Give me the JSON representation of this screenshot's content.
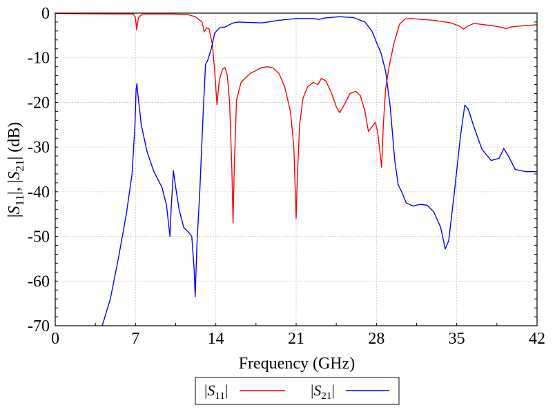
{
  "chart_data": {
    "type": "line",
    "xlabel": "Frequency (GHz)",
    "ylabel_parts": [
      "|",
      "S",
      "11",
      "|, |",
      "S",
      "21",
      "| (dB)"
    ],
    "xlim": [
      0,
      42
    ],
    "ylim": [
      -70,
      0
    ],
    "xticks": [
      0,
      7,
      14,
      21,
      28,
      35,
      42
    ],
    "xtick_labels": [
      "0",
      "7",
      "14",
      "21",
      "28",
      "35",
      "42"
    ],
    "yticks": [
      0,
      -10,
      -20,
      -30,
      -40,
      -50,
      -60,
      -70
    ],
    "ytick_labels": [
      "0",
      "-10",
      "-20",
      "-30",
      "-40",
      "-50",
      "-60",
      "-70"
    ],
    "grid": true,
    "legend_position": "bottom-center",
    "series": [
      {
        "legend": {
          "pre": "|",
          "sym": "S",
          "sub": "11",
          "post": "|"
        },
        "color": "#ff0000",
        "points": [
          [
            0,
            -0.1
          ],
          [
            6.8,
            -0.2
          ],
          [
            7.0,
            -1.0
          ],
          [
            7.1,
            -3.8
          ],
          [
            7.25,
            -1.0
          ],
          [
            7.6,
            -0.2
          ],
          [
            10,
            -0.2
          ],
          [
            11.5,
            -0.3
          ],
          [
            12.2,
            -0.8
          ],
          [
            12.8,
            -2.0
          ],
          [
            13.0,
            -4.2
          ],
          [
            13.2,
            -3.3
          ],
          [
            13.4,
            -3.5
          ],
          [
            13.7,
            -7.0
          ],
          [
            13.9,
            -13.0
          ],
          [
            14.1,
            -20.5
          ],
          [
            14.3,
            -15.0
          ],
          [
            14.6,
            -12.5
          ],
          [
            14.8,
            -12.2
          ],
          [
            15.0,
            -14.0
          ],
          [
            15.2,
            -20.0
          ],
          [
            15.4,
            -35.0
          ],
          [
            15.5,
            -47.0
          ],
          [
            15.6,
            -35.0
          ],
          [
            15.8,
            -19.5
          ],
          [
            16.2,
            -15.5
          ],
          [
            17,
            -13.5
          ],
          [
            18,
            -12.2
          ],
          [
            18.5,
            -12.0
          ],
          [
            19.0,
            -12.3
          ],
          [
            19.5,
            -13.5
          ],
          [
            20.0,
            -16.5
          ],
          [
            20.5,
            -22.0
          ],
          [
            20.8,
            -30.0
          ],
          [
            21.0,
            -46.0
          ],
          [
            21.1,
            -37.0
          ],
          [
            21.3,
            -25.0
          ],
          [
            21.6,
            -19.0
          ],
          [
            22,
            -16.5
          ],
          [
            22.5,
            -15.5
          ],
          [
            22.9,
            -16.0
          ],
          [
            23.2,
            -14.6
          ],
          [
            23.6,
            -15.2
          ],
          [
            24.1,
            -18.0
          ],
          [
            24.5,
            -21.0
          ],
          [
            24.8,
            -22.3
          ],
          [
            25.2,
            -20.5
          ],
          [
            25.7,
            -18.0
          ],
          [
            26.2,
            -17.5
          ],
          [
            26.6,
            -18.5
          ],
          [
            27.0,
            -22.0
          ],
          [
            27.3,
            -26.5
          ],
          [
            27.6,
            -25.5
          ],
          [
            27.9,
            -24.5
          ],
          [
            28.1,
            -26.5
          ],
          [
            28.3,
            -31.0
          ],
          [
            28.45,
            -34.5
          ],
          [
            28.6,
            -25.0
          ],
          [
            28.8,
            -17.0
          ],
          [
            29.1,
            -12.0
          ],
          [
            29.5,
            -7.0
          ],
          [
            30.0,
            -2.5
          ],
          [
            30.5,
            -1.3
          ],
          [
            31,
            -1.2
          ],
          [
            33,
            -1.6
          ],
          [
            34.5,
            -2.2
          ],
          [
            35.3,
            -3.0
          ],
          [
            35.6,
            -3.6
          ],
          [
            35.9,
            -3.0
          ],
          [
            36.5,
            -2.3
          ],
          [
            38,
            -2.8
          ],
          [
            39.0,
            -3.2
          ],
          [
            39.3,
            -3.5
          ],
          [
            39.7,
            -3.1
          ],
          [
            40.5,
            -2.9
          ],
          [
            42,
            -2.6
          ]
        ]
      },
      {
        "legend": {
          "pre": "|",
          "sym": "S",
          "sub": "21",
          "post": "|"
        },
        "color": "#0000ff",
        "points": [
          [
            4.1,
            -70.0
          ],
          [
            4.8,
            -64.0
          ],
          [
            5.5,
            -55.0
          ],
          [
            6.2,
            -45.0
          ],
          [
            6.7,
            -36.0
          ],
          [
            6.95,
            -25.0
          ],
          [
            7.05,
            -17.0
          ],
          [
            7.12,
            -15.8
          ],
          [
            7.2,
            -18.0
          ],
          [
            7.5,
            -25.0
          ],
          [
            8.0,
            -31.0
          ],
          [
            8.6,
            -35.5
          ],
          [
            9.3,
            -39.0
          ],
          [
            9.7,
            -43.0
          ],
          [
            10.0,
            -50.0
          ],
          [
            10.1,
            -44.0
          ],
          [
            10.3,
            -35.3
          ],
          [
            10.5,
            -39.0
          ],
          [
            10.8,
            -44.0
          ],
          [
            11.2,
            -48.0
          ],
          [
            11.6,
            -49.0
          ],
          [
            11.9,
            -50.0
          ],
          [
            12.1,
            -57.0
          ],
          [
            12.2,
            -63.5
          ],
          [
            12.35,
            -52.0
          ],
          [
            12.6,
            -40.0
          ],
          [
            12.9,
            -22.0
          ],
          [
            13.1,
            -11.5
          ],
          [
            13.3,
            -10.5
          ],
          [
            13.6,
            -8.0
          ],
          [
            13.9,
            -4.5
          ],
          [
            14.3,
            -3.3
          ],
          [
            14.8,
            -3.1
          ],
          [
            15.5,
            -2.2
          ],
          [
            16,
            -2.0
          ],
          [
            18,
            -2.2
          ],
          [
            19.5,
            -1.6
          ],
          [
            21,
            -1.2
          ],
          [
            22.5,
            -1.2
          ],
          [
            23.0,
            -1.4
          ],
          [
            23.5,
            -1.1
          ],
          [
            24.8,
            -0.8
          ],
          [
            26,
            -1.0
          ],
          [
            27.0,
            -2.0
          ],
          [
            27.6,
            -4.0
          ],
          [
            28.0,
            -6.5
          ],
          [
            28.4,
            -9.0
          ],
          [
            28.8,
            -13.0
          ],
          [
            29.2,
            -21.0
          ],
          [
            29.6,
            -33.0
          ],
          [
            29.9,
            -38.5
          ],
          [
            30.2,
            -40.0
          ],
          [
            30.6,
            -42.5
          ],
          [
            31.2,
            -43.2
          ],
          [
            31.8,
            -42.8
          ],
          [
            32.4,
            -43.0
          ],
          [
            33.0,
            -44.5
          ],
          [
            33.6,
            -48.0
          ],
          [
            34.0,
            -52.8
          ],
          [
            34.3,
            -51.0
          ],
          [
            34.8,
            -40.0
          ],
          [
            35.3,
            -28.0
          ],
          [
            35.7,
            -20.6
          ],
          [
            36.0,
            -21.5
          ],
          [
            36.5,
            -25.5
          ],
          [
            37.2,
            -30.5
          ],
          [
            38.0,
            -33.0
          ],
          [
            38.7,
            -32.5
          ],
          [
            39.1,
            -30.3
          ],
          [
            39.5,
            -32.0
          ],
          [
            40.1,
            -35.0
          ],
          [
            41,
            -35.5
          ],
          [
            42,
            -35.5
          ]
        ]
      }
    ]
  }
}
